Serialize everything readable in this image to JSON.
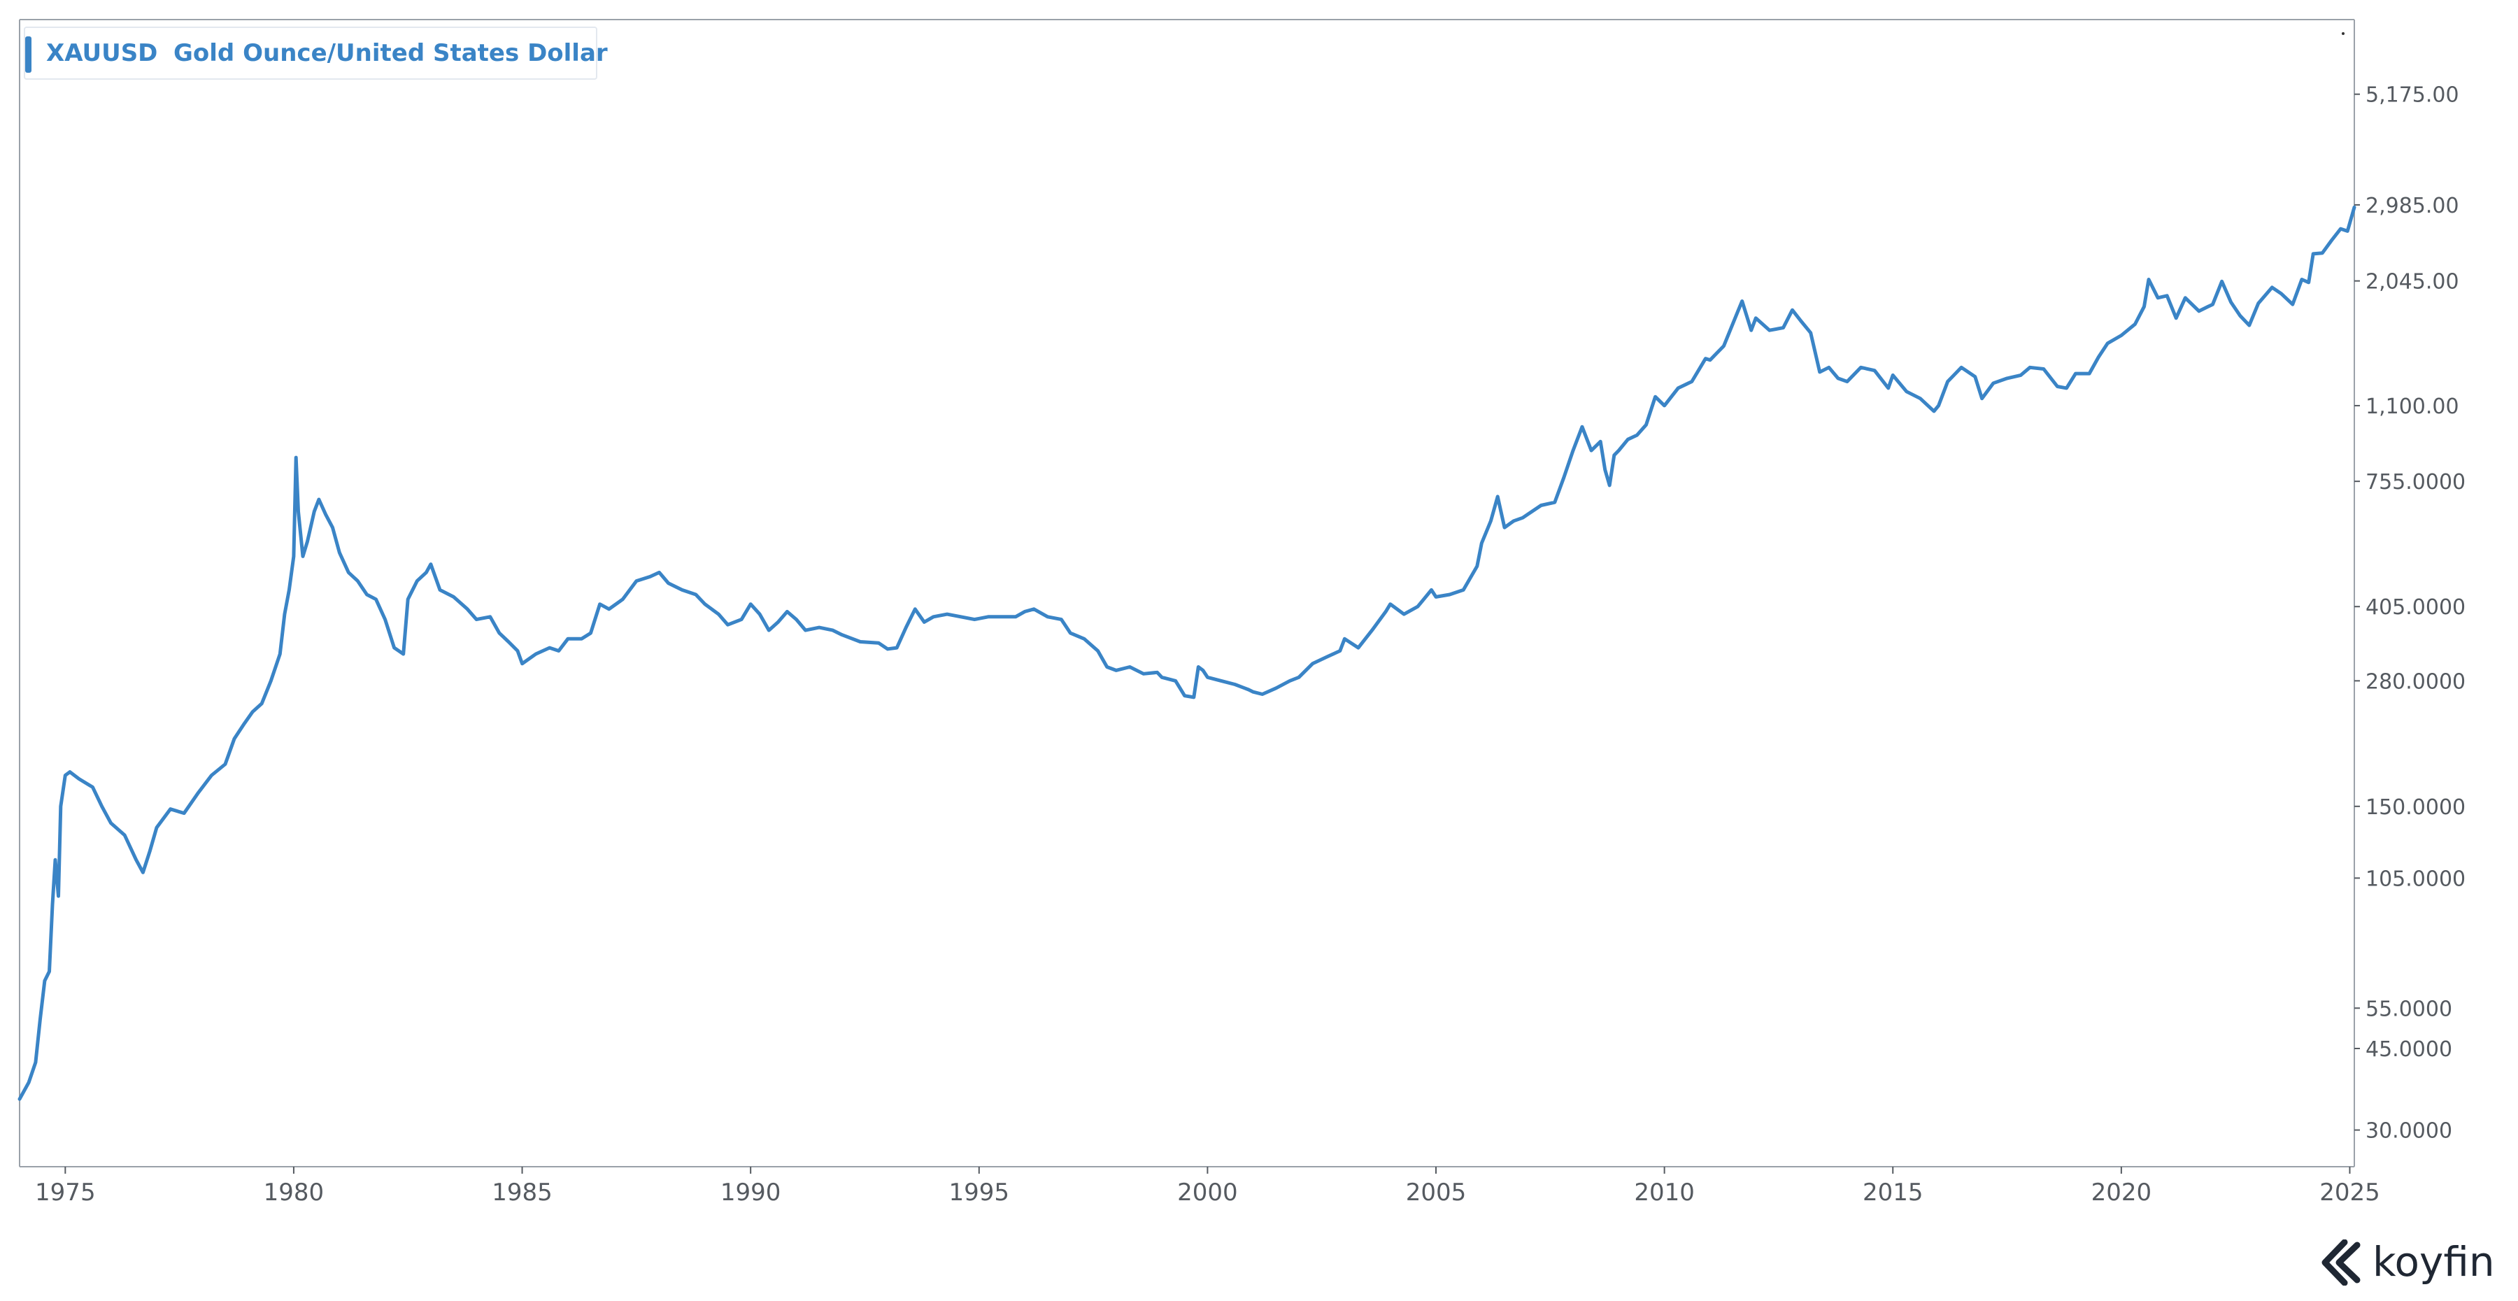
{
  "legend": {
    "ticker": "XAUUSD",
    "name": "Gold Ounce/United States Dollar"
  },
  "brand": {
    "name": "koyfin"
  },
  "colors": {
    "series": "#3a84c6",
    "axis": "#555a60",
    "frame": "#9aa1a9"
  },
  "chart_data": {
    "type": "line",
    "title": "",
    "xlabel": "",
    "ylabel": "",
    "y_scale": "log",
    "x_range": [
      1974.0,
      2025.1
    ],
    "y_range": [
      25,
      7500
    ],
    "grid": false,
    "x_ticks": [
      "1975",
      "1980",
      "1985",
      "1990",
      "1995",
      "2000",
      "2005",
      "2010",
      "2015",
      "2020",
      "2025"
    ],
    "y_ticks": [
      {
        "value": 5175,
        "label": "5,175.00"
      },
      {
        "value": 2985,
        "label": "2,985.00"
      },
      {
        "value": 2045,
        "label": "2,045.00"
      },
      {
        "value": 1100,
        "label": "1,100.00"
      },
      {
        "value": 755,
        "label": "755.0000"
      },
      {
        "value": 405,
        "label": "405.0000"
      },
      {
        "value": 280,
        "label": "280.0000"
      },
      {
        "value": 150,
        "label": "150.0000"
      },
      {
        "value": 105,
        "label": "105.0000"
      },
      {
        "value": 55,
        "label": "55.0000"
      },
      {
        "value": 45,
        "label": "45.0000"
      },
      {
        "value": 30,
        "label": "30.0000"
      }
    ],
    "series": [
      {
        "name": "XAUUSD",
        "points": [
          [
            1974.0,
            35
          ],
          [
            1974.2,
            38
          ],
          [
            1974.35,
            42
          ],
          [
            1974.45,
            52
          ],
          [
            1974.55,
            63
          ],
          [
            1974.65,
            66
          ],
          [
            1974.72,
            92
          ],
          [
            1974.78,
            115
          ],
          [
            1974.85,
            96
          ],
          [
            1974.9,
            150
          ],
          [
            1975.0,
            175
          ],
          [
            1975.1,
            178
          ],
          [
            1975.3,
            172
          ],
          [
            1975.6,
            165
          ],
          [
            1975.8,
            150
          ],
          [
            1976.0,
            138
          ],
          [
            1976.3,
            130
          ],
          [
            1976.55,
            115
          ],
          [
            1976.7,
            108
          ],
          [
            1976.85,
            120
          ],
          [
            1977.0,
            135
          ],
          [
            1977.3,
            148
          ],
          [
            1977.6,
            145
          ],
          [
            1977.9,
            160
          ],
          [
            1978.2,
            175
          ],
          [
            1978.5,
            185
          ],
          [
            1978.7,
            210
          ],
          [
            1978.9,
            225
          ],
          [
            1979.1,
            240
          ],
          [
            1979.3,
            250
          ],
          [
            1979.5,
            280
          ],
          [
            1979.7,
            320
          ],
          [
            1979.8,
            390
          ],
          [
            1979.9,
            440
          ],
          [
            1980.0,
            520
          ],
          [
            1980.05,
            850
          ],
          [
            1980.1,
            650
          ],
          [
            1980.2,
            520
          ],
          [
            1980.3,
            560
          ],
          [
            1980.45,
            650
          ],
          [
            1980.55,
            690
          ],
          [
            1980.7,
            640
          ],
          [
            1980.85,
            600
          ],
          [
            1981.0,
            530
          ],
          [
            1981.2,
            480
          ],
          [
            1981.4,
            460
          ],
          [
            1981.6,
            430
          ],
          [
            1981.8,
            420
          ],
          [
            1982.0,
            380
          ],
          [
            1982.2,
            330
          ],
          [
            1982.4,
            320
          ],
          [
            1982.5,
            420
          ],
          [
            1982.7,
            460
          ],
          [
            1982.9,
            480
          ],
          [
            1983.0,
            500
          ],
          [
            1983.2,
            440
          ],
          [
            1983.5,
            425
          ],
          [
            1983.8,
            400
          ],
          [
            1984.0,
            380
          ],
          [
            1984.3,
            385
          ],
          [
            1984.5,
            355
          ],
          [
            1984.7,
            340
          ],
          [
            1984.9,
            325
          ],
          [
            1985.0,
            305
          ],
          [
            1985.3,
            320
          ],
          [
            1985.6,
            330
          ],
          [
            1985.8,
            325
          ],
          [
            1986.0,
            345
          ],
          [
            1986.3,
            345
          ],
          [
            1986.5,
            355
          ],
          [
            1986.7,
            410
          ],
          [
            1986.9,
            400
          ],
          [
            1987.2,
            420
          ],
          [
            1987.5,
            460
          ],
          [
            1987.8,
            470
          ],
          [
            1988.0,
            480
          ],
          [
            1988.2,
            455
          ],
          [
            1988.5,
            440
          ],
          [
            1988.8,
            430
          ],
          [
            1989.0,
            410
          ],
          [
            1989.3,
            390
          ],
          [
            1989.5,
            370
          ],
          [
            1989.8,
            380
          ],
          [
            1990.0,
            410
          ],
          [
            1990.2,
            390
          ],
          [
            1990.4,
            360
          ],
          [
            1990.6,
            375
          ],
          [
            1990.8,
            395
          ],
          [
            1991.0,
            380
          ],
          [
            1991.2,
            360
          ],
          [
            1991.5,
            365
          ],
          [
            1991.8,
            360
          ],
          [
            1992.0,
            352
          ],
          [
            1992.4,
            340
          ],
          [
            1992.8,
            338
          ],
          [
            1993.0,
            328
          ],
          [
            1993.2,
            330
          ],
          [
            1993.4,
            365
          ],
          [
            1993.6,
            400
          ],
          [
            1993.8,
            375
          ],
          [
            1994.0,
            385
          ],
          [
            1994.3,
            390
          ],
          [
            1994.6,
            385
          ],
          [
            1994.9,
            380
          ],
          [
            1995.2,
            385
          ],
          [
            1995.5,
            385
          ],
          [
            1995.8,
            385
          ],
          [
            1996.0,
            395
          ],
          [
            1996.2,
            400
          ],
          [
            1996.5,
            385
          ],
          [
            1996.8,
            380
          ],
          [
            1997.0,
            355
          ],
          [
            1997.3,
            345
          ],
          [
            1997.6,
            325
          ],
          [
            1997.8,
            300
          ],
          [
            1998.0,
            295
          ],
          [
            1998.3,
            300
          ],
          [
            1998.6,
            290
          ],
          [
            1998.9,
            292
          ],
          [
            1999.0,
            285
          ],
          [
            1999.3,
            280
          ],
          [
            1999.5,
            260
          ],
          [
            1999.7,
            258
          ],
          [
            1999.8,
            300
          ],
          [
            1999.9,
            295
          ],
          [
            2000.0,
            285
          ],
          [
            2000.3,
            280
          ],
          [
            2000.6,
            275
          ],
          [
            2000.9,
            268
          ],
          [
            2001.0,
            265
          ],
          [
            2001.2,
            262
          ],
          [
            2001.5,
            270
          ],
          [
            2001.8,
            280
          ],
          [
            2002.0,
            285
          ],
          [
            2002.3,
            305
          ],
          [
            2002.6,
            315
          ],
          [
            2002.9,
            325
          ],
          [
            2003.0,
            345
          ],
          [
            2003.3,
            330
          ],
          [
            2003.6,
            360
          ],
          [
            2003.9,
            395
          ],
          [
            2004.0,
            410
          ],
          [
            2004.3,
            390
          ],
          [
            2004.6,
            405
          ],
          [
            2004.9,
            440
          ],
          [
            2005.0,
            425
          ],
          [
            2005.3,
            430
          ],
          [
            2005.6,
            440
          ],
          [
            2005.9,
            495
          ],
          [
            2006.0,
            555
          ],
          [
            2006.2,
            620
          ],
          [
            2006.35,
            700
          ],
          [
            2006.5,
            600
          ],
          [
            2006.7,
            620
          ],
          [
            2006.9,
            630
          ],
          [
            2007.0,
            640
          ],
          [
            2007.3,
            670
          ],
          [
            2007.6,
            680
          ],
          [
            2007.8,
            770
          ],
          [
            2008.0,
            880
          ],
          [
            2008.2,
            990
          ],
          [
            2008.4,
            880
          ],
          [
            2008.6,
            920
          ],
          [
            2008.7,
            800
          ],
          [
            2008.8,
            740
          ],
          [
            2008.9,
            860
          ],
          [
            2009.0,
            880
          ],
          [
            2009.2,
            930
          ],
          [
            2009.4,
            950
          ],
          [
            2009.6,
            1000
          ],
          [
            2009.8,
            1150
          ],
          [
            2010.0,
            1100
          ],
          [
            2010.3,
            1200
          ],
          [
            2010.6,
            1240
          ],
          [
            2010.9,
            1390
          ],
          [
            2011.0,
            1380
          ],
          [
            2011.3,
            1480
          ],
          [
            2011.6,
            1750
          ],
          [
            2011.7,
            1850
          ],
          [
            2011.9,
            1600
          ],
          [
            2012.0,
            1700
          ],
          [
            2012.3,
            1600
          ],
          [
            2012.6,
            1620
          ],
          [
            2012.8,
            1770
          ],
          [
            2013.0,
            1670
          ],
          [
            2013.2,
            1580
          ],
          [
            2013.4,
            1300
          ],
          [
            2013.6,
            1330
          ],
          [
            2013.8,
            1260
          ],
          [
            2014.0,
            1240
          ],
          [
            2014.3,
            1330
          ],
          [
            2014.6,
            1310
          ],
          [
            2014.9,
            1200
          ],
          [
            2015.0,
            1280
          ],
          [
            2015.3,
            1180
          ],
          [
            2015.6,
            1140
          ],
          [
            2015.9,
            1070
          ],
          [
            2016.0,
            1100
          ],
          [
            2016.2,
            1240
          ],
          [
            2016.5,
            1330
          ],
          [
            2016.8,
            1270
          ],
          [
            2016.95,
            1140
          ],
          [
            2017.2,
            1230
          ],
          [
            2017.5,
            1260
          ],
          [
            2017.8,
            1280
          ],
          [
            2018.0,
            1330
          ],
          [
            2018.3,
            1320
          ],
          [
            2018.6,
            1210
          ],
          [
            2018.8,
            1200
          ],
          [
            2019.0,
            1290
          ],
          [
            2019.3,
            1290
          ],
          [
            2019.5,
            1400
          ],
          [
            2019.7,
            1500
          ],
          [
            2020.0,
            1560
          ],
          [
            2020.3,
            1650
          ],
          [
            2020.5,
            1800
          ],
          [
            2020.6,
            2060
          ],
          [
            2020.8,
            1880
          ],
          [
            2021.0,
            1900
          ],
          [
            2021.2,
            1700
          ],
          [
            2021.4,
            1880
          ],
          [
            2021.7,
            1760
          ],
          [
            2021.9,
            1800
          ],
          [
            2022.0,
            1820
          ],
          [
            2022.2,
            2040
          ],
          [
            2022.4,
            1840
          ],
          [
            2022.6,
            1720
          ],
          [
            2022.8,
            1640
          ],
          [
            2023.0,
            1830
          ],
          [
            2023.3,
            1980
          ],
          [
            2023.5,
            1920
          ],
          [
            2023.75,
            1820
          ],
          [
            2023.95,
            2060
          ],
          [
            2024.1,
            2030
          ],
          [
            2024.2,
            2340
          ],
          [
            2024.4,
            2350
          ],
          [
            2024.6,
            2500
          ],
          [
            2024.8,
            2650
          ],
          [
            2024.95,
            2620
          ],
          [
            2025.1,
            2950
          ]
        ]
      }
    ]
  }
}
